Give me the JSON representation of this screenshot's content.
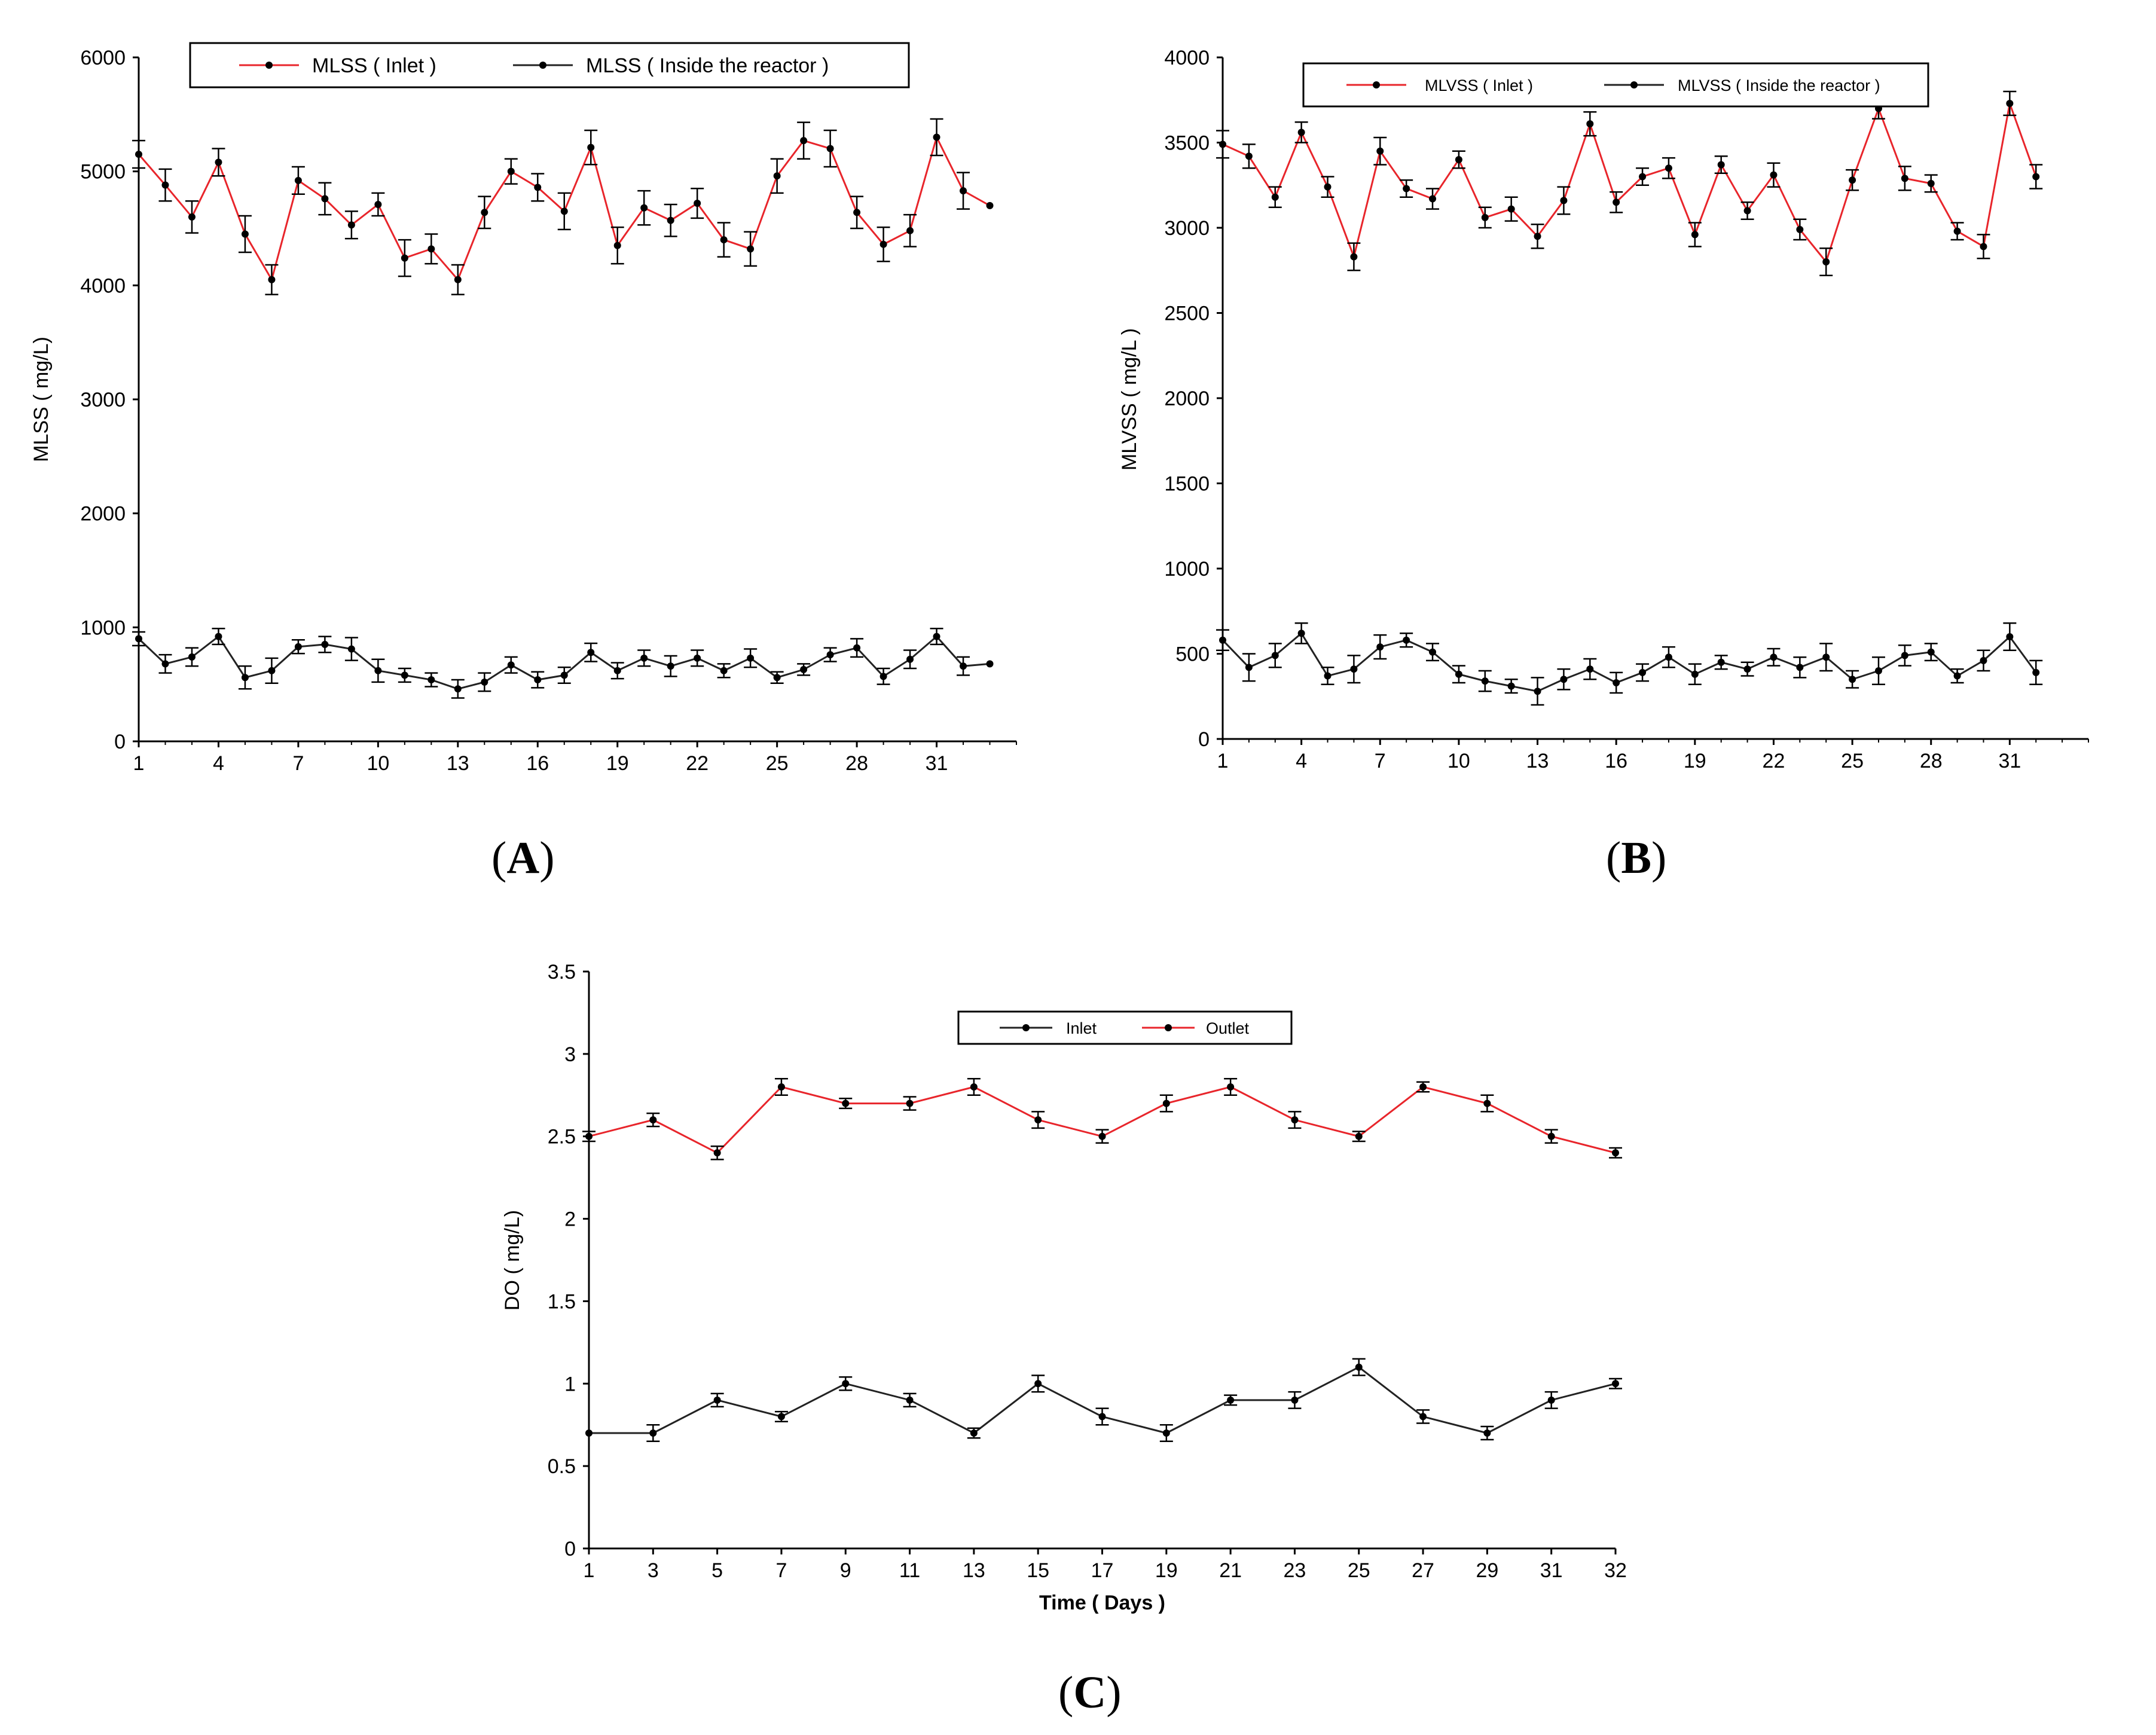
{
  "panels": {
    "A": {
      "label": "A"
    },
    "B": {
      "label": "B"
    },
    "C": {
      "label": "C"
    }
  },
  "chart_data": [
    {
      "id": "A",
      "type": "line",
      "title": "",
      "xlabel": "",
      "ylabel": "MLSS ( mg/L)",
      "ylim": [
        0,
        6000
      ],
      "yticks": [
        0,
        1000,
        2000,
        3000,
        4000,
        5000,
        6000
      ],
      "xlim": [
        1,
        34
      ],
      "xticks": [
        1,
        4,
        7,
        10,
        13,
        16,
        19,
        22,
        25,
        28,
        31
      ],
      "legend_position": "top",
      "series": [
        {
          "name": "MLSS ( Inlet )",
          "color": "#e8252b",
          "x": [
            1,
            2,
            3,
            4,
            5,
            6,
            7,
            8,
            9,
            10,
            11,
            12,
            13,
            14,
            15,
            16,
            17,
            18,
            19,
            20,
            21,
            22,
            23,
            24,
            25,
            26,
            27,
            28,
            29,
            30,
            31,
            32,
            33
          ],
          "values": [
            5150,
            4880,
            4600,
            5080,
            4450,
            4050,
            4920,
            4760,
            4530,
            4710,
            4240,
            4320,
            4050,
            4640,
            5000,
            4860,
            4650,
            5210,
            4350,
            4680,
            4570,
            4720,
            4400,
            4320,
            4960,
            5270,
            5200,
            4640,
            4360,
            4480,
            5300,
            4830,
            4700
          ],
          "errors": [
            120,
            140,
            140,
            120,
            160,
            130,
            120,
            140,
            120,
            100,
            160,
            130,
            130,
            140,
            110,
            120,
            160,
            150,
            160,
            150,
            140,
            130,
            150,
            150,
            150,
            160,
            160,
            140,
            150,
            140,
            160,
            160,
            0
          ]
        },
        {
          "name": "MLSS ( Inside the reactor )",
          "color": "#222222",
          "x": [
            1,
            2,
            3,
            4,
            5,
            6,
            7,
            8,
            9,
            10,
            11,
            12,
            13,
            14,
            15,
            16,
            17,
            18,
            19,
            20,
            21,
            22,
            23,
            24,
            25,
            26,
            27,
            28,
            29,
            30,
            31,
            32,
            33
          ],
          "values": [
            900,
            680,
            740,
            920,
            560,
            620,
            830,
            850,
            810,
            620,
            580,
            540,
            460,
            520,
            670,
            540,
            580,
            780,
            620,
            730,
            660,
            730,
            620,
            730,
            560,
            630,
            760,
            820,
            570,
            720,
            920,
            660,
            680
          ],
          "errors": [
            60,
            80,
            80,
            70,
            100,
            110,
            60,
            70,
            100,
            100,
            60,
            60,
            80,
            80,
            70,
            70,
            70,
            80,
            70,
            70,
            90,
            70,
            60,
            80,
            50,
            50,
            60,
            80,
            70,
            80,
            70,
            80,
            0
          ]
        }
      ]
    },
    {
      "id": "B",
      "type": "line",
      "title": "",
      "xlabel": "",
      "ylabel": "MLVSS ( mg/L )",
      "ylim": [
        0,
        4000
      ],
      "yticks": [
        0,
        500,
        1000,
        1500,
        2000,
        2500,
        3000,
        3500,
        4000
      ],
      "xlim": [
        1,
        34
      ],
      "xticks": [
        1,
        4,
        7,
        10,
        13,
        16,
        19,
        22,
        25,
        28,
        31
      ],
      "legend_position": "top",
      "series": [
        {
          "name": "MLVSS ( Inlet )",
          "color": "#e8252b",
          "x": [
            1,
            2,
            3,
            4,
            5,
            6,
            7,
            8,
            9,
            10,
            11,
            12,
            13,
            14,
            15,
            16,
            17,
            18,
            19,
            20,
            21,
            22,
            23,
            24,
            25,
            26,
            27,
            28,
            29,
            30,
            31,
            32
          ],
          "values": [
            3490,
            3420,
            3180,
            3560,
            3240,
            2830,
            3450,
            3230,
            3170,
            3400,
            3060,
            3110,
            2950,
            3160,
            3610,
            3150,
            3300,
            3350,
            2960,
            3370,
            3100,
            3310,
            2990,
            2800,
            3280,
            3700,
            3290,
            3260,
            2980,
            2890,
            3730,
            3300
          ],
          "errors": [
            80,
            70,
            60,
            60,
            60,
            80,
            80,
            50,
            60,
            50,
            60,
            70,
            70,
            80,
            70,
            60,
            50,
            60,
            70,
            50,
            50,
            70,
            60,
            80,
            60,
            60,
            70,
            50,
            50,
            70,
            70,
            70
          ]
        },
        {
          "name": "MLVSS ( Inside the reactor )",
          "color": "#222222",
          "x": [
            1,
            2,
            3,
            4,
            5,
            6,
            7,
            8,
            9,
            10,
            11,
            12,
            13,
            14,
            15,
            16,
            17,
            18,
            19,
            20,
            21,
            22,
            23,
            24,
            25,
            26,
            27,
            28,
            29,
            30,
            31,
            32
          ],
          "values": [
            580,
            420,
            490,
            620,
            370,
            410,
            540,
            580,
            510,
            380,
            340,
            310,
            280,
            350,
            410,
            330,
            390,
            480,
            380,
            450,
            410,
            480,
            420,
            480,
            350,
            400,
            490,
            510,
            370,
            460,
            600,
            390
          ],
          "errors": [
            60,
            80,
            70,
            60,
            50,
            80,
            70,
            40,
            50,
            50,
            60,
            40,
            80,
            60,
            60,
            60,
            50,
            60,
            60,
            40,
            40,
            50,
            60,
            80,
            50,
            80,
            60,
            50,
            40,
            60,
            80,
            70
          ]
        }
      ]
    },
    {
      "id": "C",
      "type": "line",
      "title": "",
      "xlabel": "Time ( Days )",
      "ylabel": "DO ( mg/L)",
      "ylim": [
        0,
        3.5
      ],
      "yticks": [
        0,
        0.5,
        1,
        1.5,
        2,
        2.5,
        3,
        3.5
      ],
      "ytick_labels": [
        "0",
        "0.5",
        "1",
        "1.5",
        "2",
        "2.5",
        "3",
        "3.5"
      ],
      "x_categories": [
        "1",
        "3",
        "5",
        "7",
        "9",
        "11",
        "13",
        "15",
        "17",
        "19",
        "21",
        "23",
        "25",
        "27",
        "29",
        "31",
        "32"
      ],
      "legend_position": "top",
      "series": [
        {
          "name": "Inlet",
          "color": "#222222",
          "values": [
            0.7,
            0.7,
            0.9,
            0.8,
            1.0,
            0.9,
            0.7,
            1.0,
            0.8,
            0.7,
            0.9,
            0.9,
            1.1,
            0.8,
            0.7,
            0.9,
            1.0
          ],
          "errors": [
            0.0,
            0.05,
            0.04,
            0.03,
            0.04,
            0.04,
            0.03,
            0.05,
            0.05,
            0.05,
            0.03,
            0.05,
            0.05,
            0.04,
            0.04,
            0.05,
            0.03
          ]
        },
        {
          "name": "Outlet",
          "color": "#e8252b",
          "values": [
            2.5,
            2.6,
            2.4,
            2.8,
            2.7,
            2.7,
            2.8,
            2.6,
            2.5,
            2.7,
            2.8,
            2.6,
            2.5,
            2.8,
            2.7,
            2.5,
            2.4
          ],
          "errors": [
            0.03,
            0.04,
            0.04,
            0.05,
            0.03,
            0.04,
            0.05,
            0.05,
            0.04,
            0.05,
            0.05,
            0.05,
            0.03,
            0.03,
            0.05,
            0.04,
            0.03
          ]
        }
      ]
    }
  ]
}
